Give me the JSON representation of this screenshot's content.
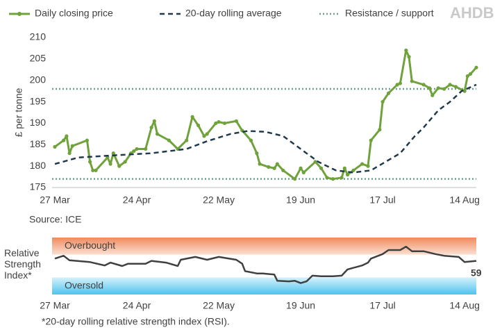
{
  "logo": "AHDB",
  "chart_data": [
    {
      "type": "line",
      "y_label": "£ per tonne",
      "source": "Source: ICE",
      "xlim": [
        0,
        144
      ],
      "xticks": [
        {
          "value": 0,
          "label": "27 Mar"
        },
        {
          "value": 28,
          "label": "24 Apr"
        },
        {
          "value": 56,
          "label": "22 May"
        },
        {
          "value": 84,
          "label": "19 Jun"
        },
        {
          "value": 112,
          "label": "17 Jul"
        },
        {
          "value": 140,
          "label": "14 Aug"
        }
      ],
      "ylim": [
        175,
        210
      ],
      "yticks": [
        175,
        180,
        185,
        190,
        195,
        200,
        205,
        210
      ],
      "series": [
        {
          "name": "Daily closing price",
          "color": "#6fa23a",
          "style": "solid",
          "markers": true,
          "x": [
            0,
            3,
            4,
            5,
            6,
            11,
            12,
            13,
            14,
            18,
            19,
            20,
            22,
            24,
            26,
            27,
            28,
            31,
            33,
            34,
            35,
            39,
            42,
            45,
            47,
            49,
            51,
            52,
            55,
            56,
            58,
            62,
            64,
            67,
            69,
            70,
            73,
            75,
            76,
            78,
            82,
            84,
            85,
            89,
            91,
            93,
            95,
            98,
            99,
            100,
            102,
            105,
            107,
            108,
            111,
            112,
            114,
            117,
            118,
            120,
            121,
            122,
            126,
            128,
            129,
            131,
            133,
            135,
            137,
            140,
            141,
            142,
            144
          ],
          "values": [
            184.5,
            186,
            187,
            183,
            184.7,
            186,
            181,
            179,
            179,
            182,
            180.5,
            183,
            180,
            181,
            183,
            183.5,
            184,
            184,
            189,
            190.5,
            187.5,
            186,
            184,
            186,
            191.5,
            189.5,
            187,
            187.5,
            190,
            190.3,
            190,
            190.5,
            188.3,
            186,
            183,
            180.5,
            179.8,
            179.5,
            180.5,
            179,
            177,
            179.5,
            178.5,
            181,
            179.5,
            177.3,
            177,
            177.3,
            179.5,
            178,
            179,
            180.5,
            180,
            186,
            188.5,
            195,
            197,
            199,
            199.3,
            207,
            205.5,
            199.8,
            199,
            198.2,
            196.5,
            198.2,
            198,
            199,
            198.5,
            197.5,
            201,
            201.5,
            203
          ]
        },
        {
          "name": "20-day rolling average",
          "color": "#1f3a4d",
          "style": "dashed",
          "markers": false,
          "x": [
            0,
            8,
            20,
            33,
            45,
            52,
            60,
            66,
            72,
            78,
            84,
            90,
            96,
            102,
            108,
            113,
            118,
            123,
            126,
            131,
            135,
            139,
            144
          ],
          "values": [
            180.5,
            182,
            182.5,
            183,
            184,
            185.8,
            187.5,
            188.2,
            188,
            187,
            184,
            181,
            179,
            178.5,
            179,
            181,
            183,
            187,
            189,
            193,
            195,
            197.5,
            199
          ]
        }
      ],
      "reference_lines": {
        "name": "Resistance / support",
        "color": "#6f9e90",
        "style": "dotted",
        "values": [
          198,
          177
        ]
      }
    },
    {
      "type": "line",
      "y_label": "Relative Strength Index*",
      "footnote": "*20-day rolling relative strength index (RSI).",
      "xlim": [
        0,
        144
      ],
      "xticks": [
        {
          "value": 0,
          "label": "27 Mar"
        },
        {
          "value": 28,
          "label": "24 Apr"
        },
        {
          "value": 56,
          "label": "22 May"
        },
        {
          "value": 84,
          "label": "19 Jun"
        },
        {
          "value": 112,
          "label": "17 Jul"
        },
        {
          "value": 140,
          "label": "14 Aug"
        }
      ],
      "ylim": [
        0,
        100
      ],
      "bands": [
        {
          "label": "Overbought",
          "range": [
            70,
            100
          ],
          "color": "#f08a5d"
        },
        {
          "label": "Oversold",
          "range": [
            0,
            30
          ],
          "color": "#4ec3ee"
        }
      ],
      "series": [
        {
          "color": "#404040",
          "x": [
            0,
            3,
            5,
            12,
            17,
            19,
            23,
            25,
            31,
            33,
            38,
            42,
            43,
            48,
            52,
            56,
            62,
            64,
            65,
            69,
            71,
            75,
            76,
            80,
            82,
            84,
            86,
            88,
            91,
            95,
            98,
            100,
            105,
            107,
            108,
            112,
            114,
            118,
            120,
            122,
            126,
            130,
            133,
            138,
            140,
            144
          ],
          "values": [
            63,
            68,
            60,
            57,
            51,
            56,
            50,
            54,
            54,
            59,
            56,
            50,
            61,
            66,
            61,
            66,
            61,
            54,
            41,
            37,
            37,
            35,
            24,
            23,
            24,
            20,
            23,
            33,
            32,
            32,
            33,
            44,
            51,
            56,
            63,
            71,
            78,
            78,
            84,
            76,
            76,
            71,
            68,
            66,
            57,
            59
          ]
        }
      ]
    }
  ]
}
